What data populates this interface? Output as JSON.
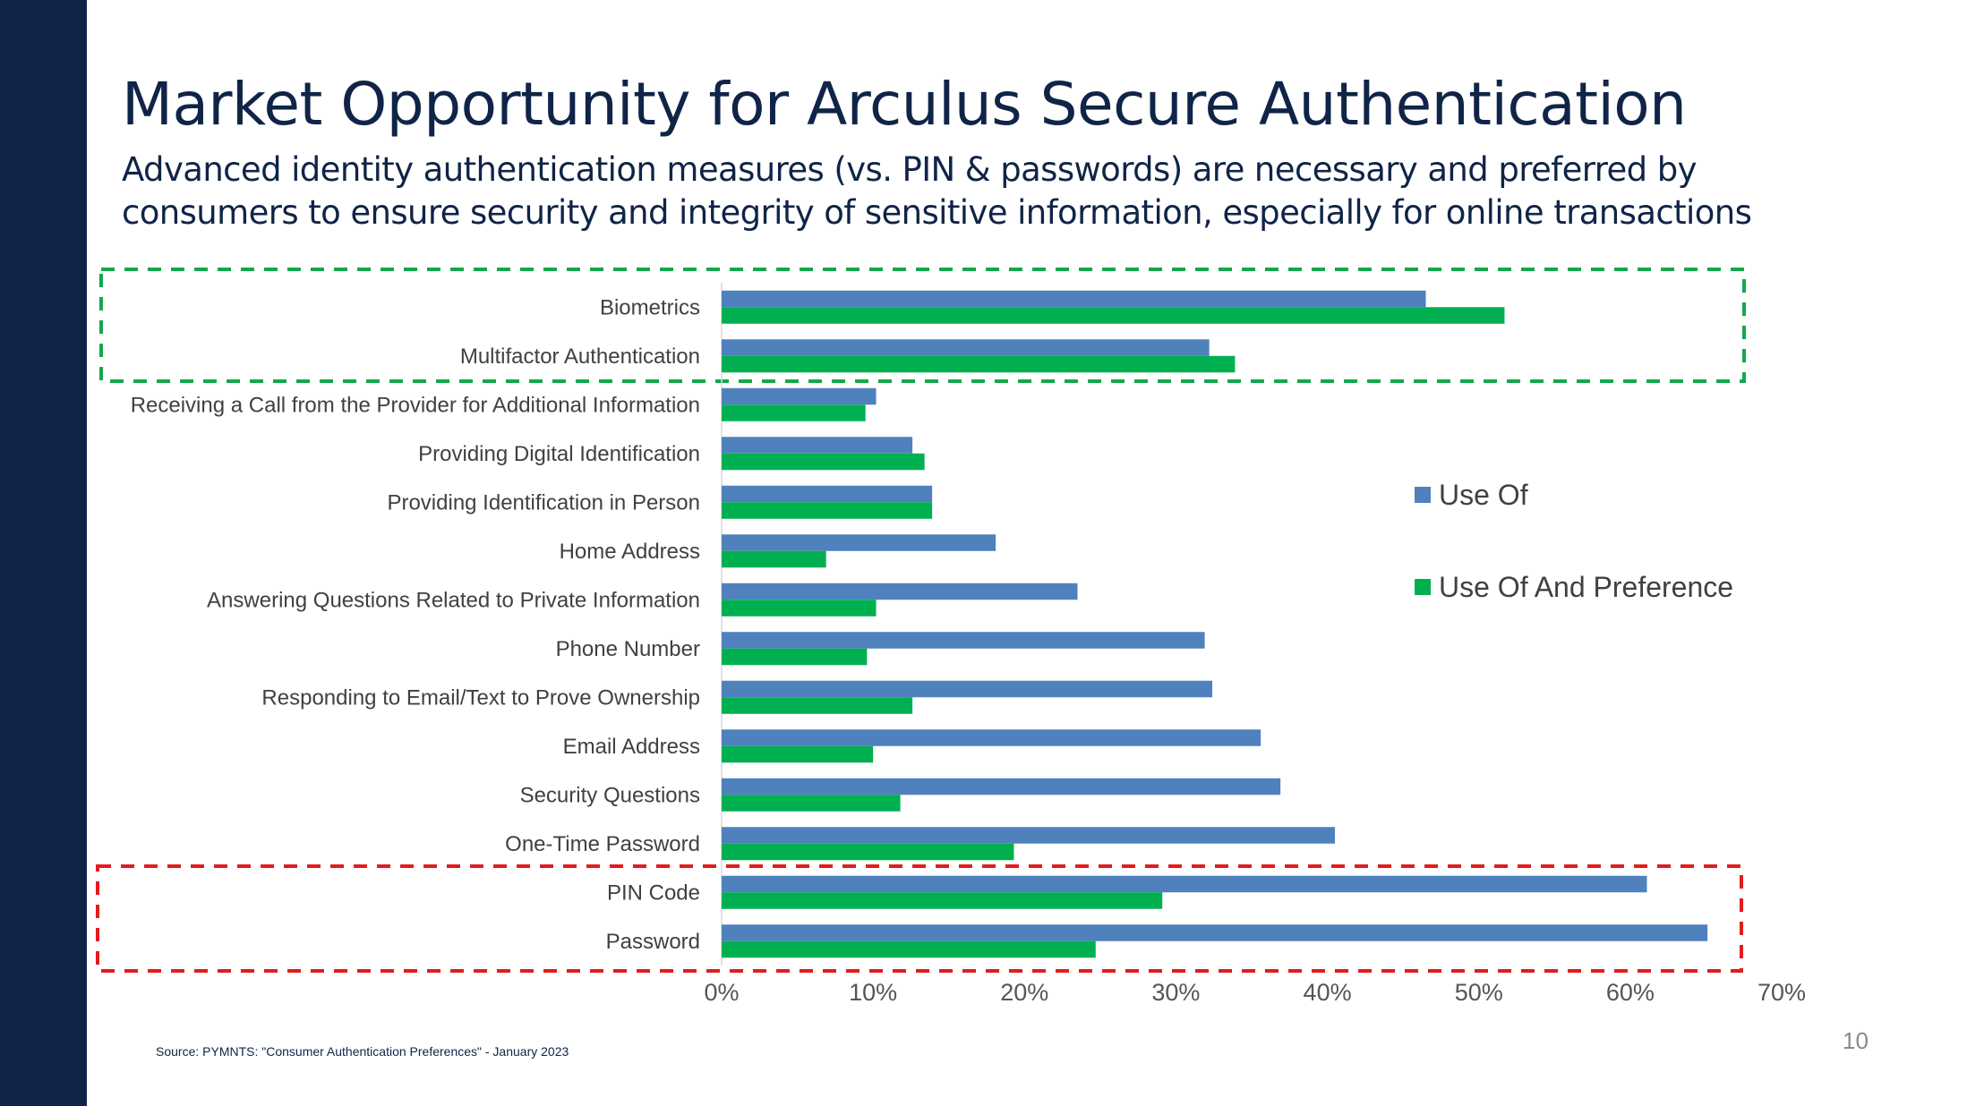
{
  "slide": {
    "title": "Market Opportunity for Arculus Secure Authentication",
    "subtitle_line1": "Advanced identity authentication measures (vs. PIN & passwords) are necessary and preferred by",
    "subtitle_line2": "consumers to ensure security and integrity of sensitive information, especially for online transactions",
    "source": "Source: PYMNTS: \"Consumer Authentication Preferences\" - January 2023",
    "page_number": "10"
  },
  "colors": {
    "sidebar": "#0f2447",
    "title": "#0f2447",
    "use_of": "#4f81bd",
    "use_of_and_preference": "#00b050",
    "highlight_preferred": "#12a84a",
    "highlight_legacy": "#e31c1c",
    "label_text": "#404040",
    "tick_text": "#555555"
  },
  "chart_data": {
    "type": "bar",
    "orientation": "horizontal",
    "title": "",
    "xlabel": "",
    "ylabel": "",
    "xlim": [
      0,
      0.7
    ],
    "xticks": [
      0,
      0.1,
      0.2,
      0.3,
      0.4,
      0.5,
      0.6,
      0.7
    ],
    "xtick_labels": [
      "0%",
      "10%",
      "20%",
      "30%",
      "40%",
      "50%",
      "60%",
      "70%"
    ],
    "grid": false,
    "legend_position": "right",
    "categories": [
      "Biometrics",
      "Multifactor Authentication",
      "Receiving a Call from the Provider for Additional Information",
      "Providing Digital Identification",
      "Providing Identification in Person",
      "Home Address",
      "Answering Questions Related to Private Information",
      "Phone Number",
      "Responding to Email/Text to Prove Ownership",
      "Email Address",
      "Security Questions",
      "One-Time Password",
      "PIN Code",
      "Password"
    ],
    "series": [
      {
        "name": "Use Of",
        "color_key": "use_of",
        "values": [
          0.465,
          0.322,
          0.102,
          0.126,
          0.139,
          0.181,
          0.235,
          0.319,
          0.324,
          0.356,
          0.369,
          0.405,
          0.611,
          0.651
        ]
      },
      {
        "name": "Use Of And Preference",
        "color_key": "use_of_and_preference",
        "values": [
          0.517,
          0.339,
          0.095,
          0.134,
          0.139,
          0.069,
          0.102,
          0.096,
          0.126,
          0.1,
          0.118,
          0.193,
          0.291,
          0.247
        ]
      }
    ],
    "highlights": [
      {
        "name": "preferred-methods",
        "categories": [
          "Biometrics",
          "Multifactor Authentication"
        ],
        "color_key": "highlight_preferred"
      },
      {
        "name": "legacy-methods",
        "categories": [
          "PIN Code",
          "Password"
        ],
        "color_key": "highlight_legacy"
      }
    ]
  }
}
